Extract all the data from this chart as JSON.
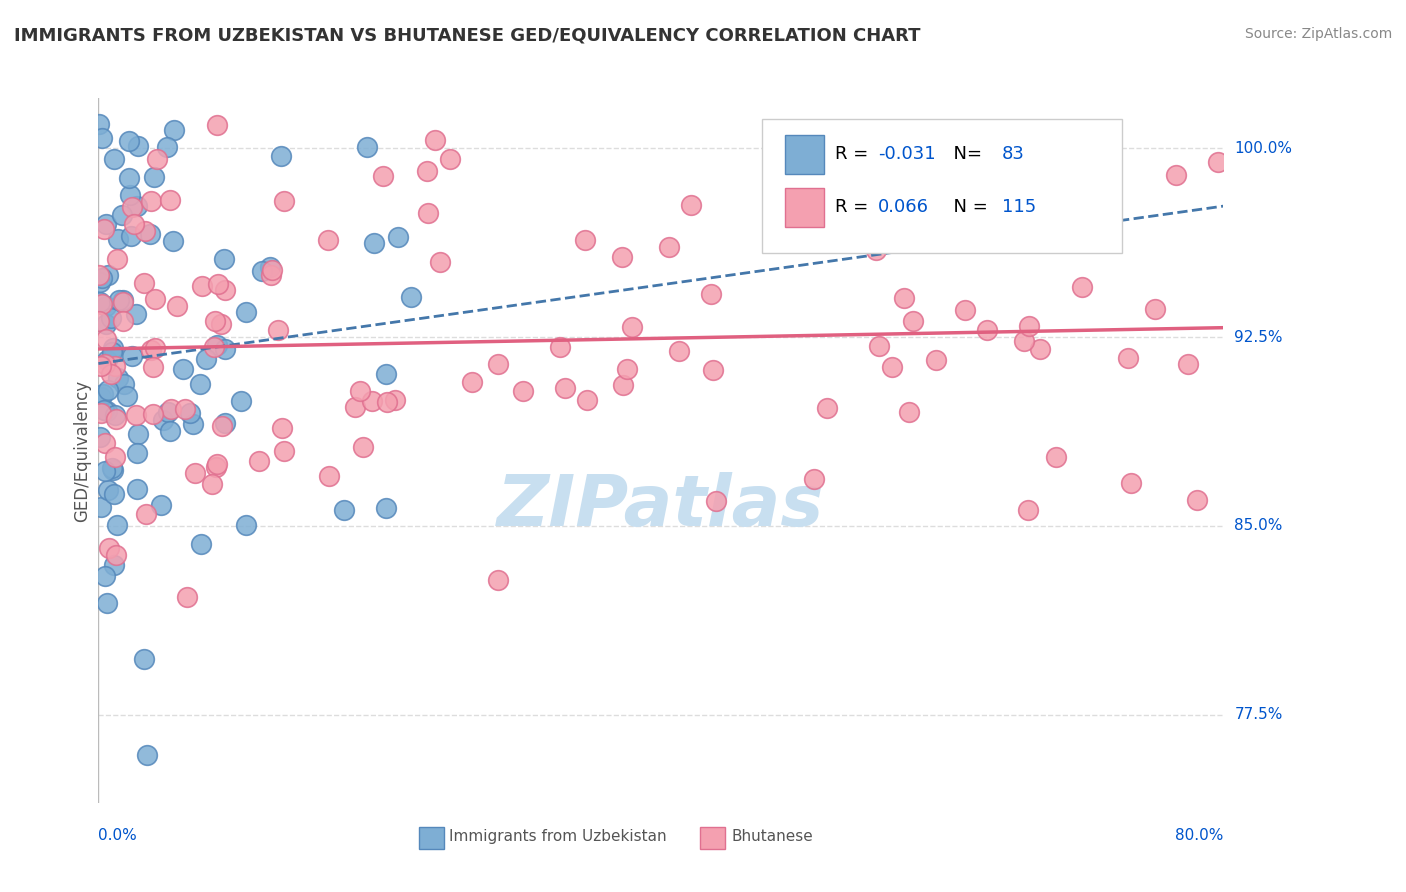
{
  "title": "IMMIGRANTS FROM UZBEKISTAN VS BHUTANESE GED/EQUIVALENCY CORRELATION CHART",
  "source_text": "Source: ZipAtlas.com",
  "xlabel_bottom_left": "0.0%",
  "xlabel_bottom_right": "80.0%",
  "ylabel": "GED/Equivalency",
  "ytick_labels": [
    "77.5%",
    "85.0%",
    "92.5%",
    "100.0%"
  ],
  "ytick_values": [
    77.5,
    85.0,
    92.5,
    100.0
  ],
  "legend_bottom": [
    "Immigrants from Uzbekistan",
    "Bhutanese"
  ],
  "blue_R": -0.031,
  "blue_N": 83,
  "pink_R": 0.066,
  "pink_N": 115,
  "blue_color": "#7eaed4",
  "pink_color": "#f4a0b0",
  "blue_edge": "#5588bb",
  "pink_edge": "#e07090",
  "trend_blue_color": "#4477aa",
  "trend_pink_color": "#e06080",
  "xmin": 0.0,
  "xmax": 80.0,
  "ymin": 74.0,
  "ymax": 102.0,
  "background_color": "#ffffff",
  "watermark_text": "ZIPatlas",
  "watermark_color": "#c8dff0",
  "grid_color": "#dddddd",
  "title_color": "#333333",
  "source_color": "#888888",
  "legend_R_color": "#0055cc",
  "blue_seed": 42,
  "pink_seed": 99
}
